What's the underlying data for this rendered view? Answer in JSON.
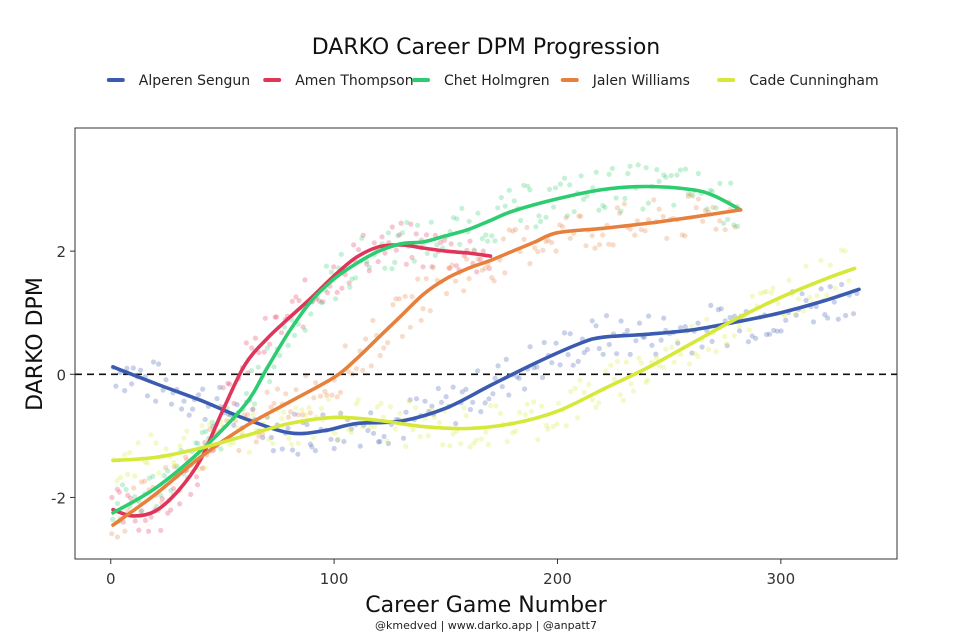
{
  "chart_data": {
    "type": "line",
    "title": "DARKO Career DPM Progression",
    "xlabel": "Career Game Number",
    "ylabel": "DARKO DPM",
    "caption": "@kmedved | www.darko.app | @anpatt7",
    "xlim": [
      -16,
      352
    ],
    "ylim": [
      -3.0,
      4.0
    ],
    "x_ticks": [
      0,
      100,
      200,
      300
    ],
    "y_ticks": [
      -2,
      0,
      2
    ],
    "x_tick_labels": [
      "0",
      "100",
      "200",
      "300"
    ],
    "y_tick_labels": [
      "-2",
      "0",
      "2"
    ],
    "reference_line": 0,
    "grid": false,
    "legend_position": "top",
    "series": [
      {
        "name": "Alperen Sengun",
        "color": "#3a5bb0",
        "x": [
          1,
          20,
          40,
          60,
          80,
          95,
          110,
          130,
          150,
          170,
          190,
          210,
          220,
          240,
          260,
          280,
          300,
          320,
          335
        ],
        "values": [
          0.12,
          -0.15,
          -0.42,
          -0.72,
          -0.95,
          -0.92,
          -0.8,
          -0.76,
          -0.55,
          -0.18,
          0.18,
          0.5,
          0.6,
          0.65,
          0.72,
          0.85,
          1.0,
          1.2,
          1.38
        ]
      },
      {
        "name": "Amen Thompson",
        "color": "#e0355a",
        "x": [
          1,
          10,
          20,
          30,
          40,
          50,
          60,
          70,
          80,
          90,
          100,
          110,
          120,
          130,
          140,
          150,
          160,
          170
        ],
        "values": [
          -2.2,
          -2.3,
          -2.22,
          -1.9,
          -1.4,
          -0.6,
          0.15,
          0.58,
          0.92,
          1.25,
          1.6,
          1.9,
          2.07,
          2.1,
          2.05,
          2.0,
          1.97,
          1.92
        ]
      },
      {
        "name": "Chet Holmgren",
        "color": "#2ecc71",
        "x": [
          1,
          20,
          40,
          60,
          70,
          80,
          90,
          100,
          110,
          120,
          130,
          140,
          150,
          160,
          170,
          180,
          200,
          220,
          240,
          260,
          270,
          282
        ],
        "values": [
          -2.25,
          -1.85,
          -1.25,
          -0.5,
          0.1,
          0.7,
          1.2,
          1.55,
          1.8,
          2.0,
          2.12,
          2.15,
          2.25,
          2.35,
          2.5,
          2.65,
          2.85,
          3.0,
          3.05,
          3.0,
          2.9,
          2.67
        ]
      },
      {
        "name": "Jalen Williams",
        "color": "#e6803c",
        "x": [
          1,
          20,
          40,
          60,
          80,
          100,
          110,
          120,
          130,
          140,
          150,
          160,
          170,
          180,
          190,
          200,
          220,
          240,
          260,
          282
        ],
        "values": [
          -2.45,
          -1.95,
          -1.35,
          -0.85,
          -0.45,
          -0.05,
          0.25,
          0.6,
          0.95,
          1.3,
          1.55,
          1.72,
          1.85,
          2.0,
          2.15,
          2.3,
          2.37,
          2.45,
          2.55,
          2.67
        ]
      },
      {
        "name": "Cade Cunningham",
        "color": "#d6e83a",
        "x": [
          1,
          20,
          40,
          60,
          80,
          100,
          120,
          140,
          160,
          180,
          200,
          220,
          240,
          260,
          280,
          300,
          320,
          333
        ],
        "values": [
          -1.4,
          -1.35,
          -1.2,
          -1.0,
          -0.8,
          -0.7,
          -0.75,
          -0.85,
          -0.88,
          -0.8,
          -0.6,
          -0.25,
          0.1,
          0.5,
          0.9,
          1.25,
          1.55,
          1.72
        ]
      }
    ]
  }
}
